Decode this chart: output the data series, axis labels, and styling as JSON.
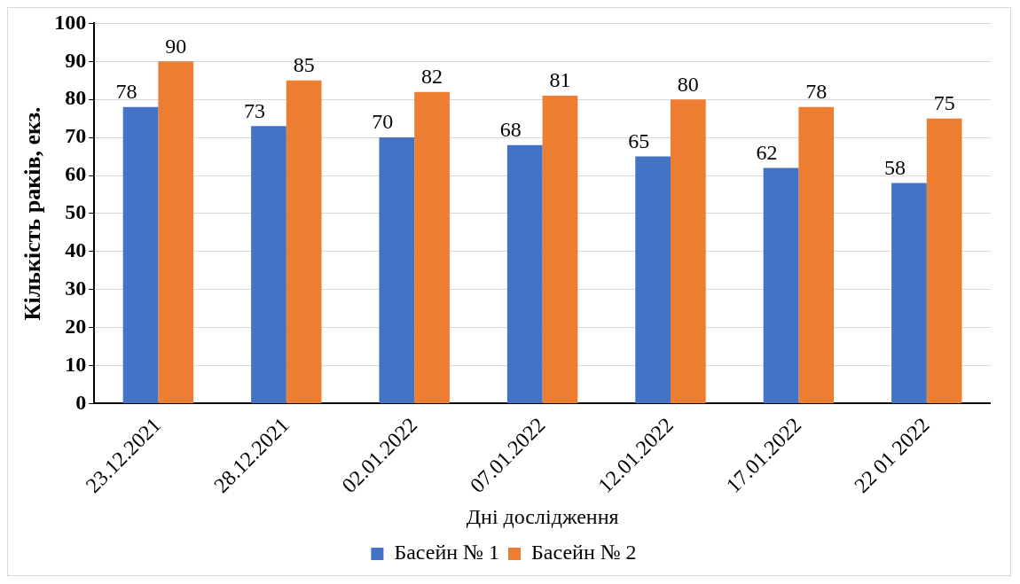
{
  "chart_data": {
    "type": "bar",
    "xlabel": "Дні дослідження",
    "ylabel": "Кількість раків, екз.",
    "categories": [
      "23.12.2021",
      "28.12.2021",
      "02.01.2022",
      "07.01.2022",
      "12.01.2022",
      "17.01.2022",
      "22 01 2022"
    ],
    "series": [
      {
        "name": "Басейн № 1",
        "color": "#4472c4",
        "values": [
          78,
          73,
          70,
          68,
          65,
          62,
          58
        ]
      },
      {
        "name": "Басейн № 2",
        "color": "#ed7d31",
        "values": [
          90,
          85,
          82,
          81,
          80,
          78,
          75
        ]
      }
    ],
    "ylim": [
      0,
      100
    ],
    "yticks": [
      0,
      10,
      20,
      30,
      40,
      50,
      60,
      70,
      80,
      90,
      100
    ],
    "grid": "y",
    "legend": "bottom",
    "data_labels": true
  }
}
